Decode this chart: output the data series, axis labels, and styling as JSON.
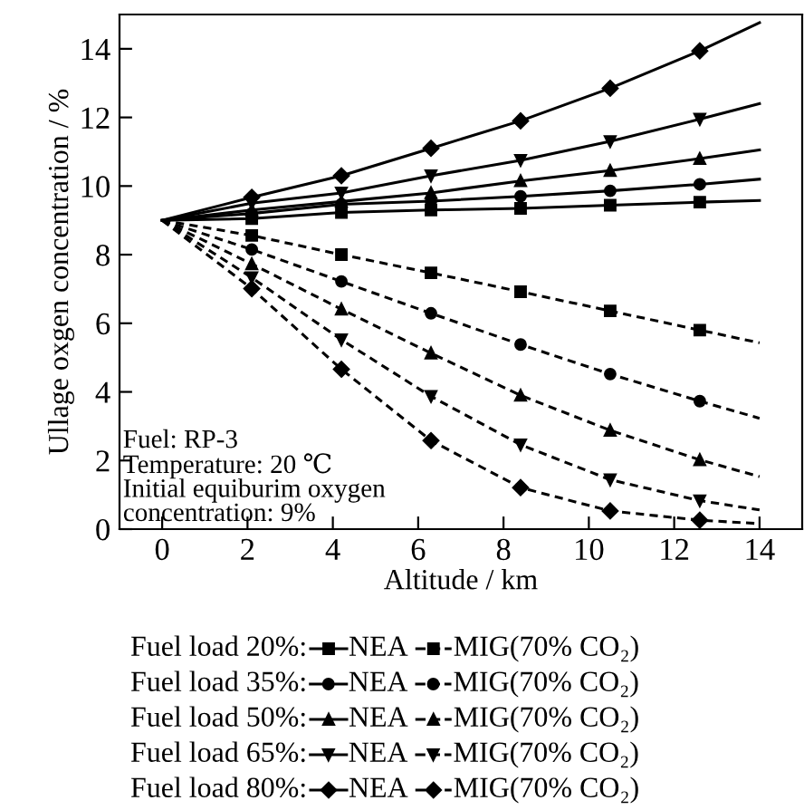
{
  "chart_data": {
    "type": "line",
    "xlabel": "Altitude / km",
    "ylabel": "Ullage oxgen concentration / %",
    "x": [
      0,
      2.1,
      4.2,
      6.3,
      8.4,
      10.5,
      12.6,
      14
    ],
    "xlim": [
      -1,
      15
    ],
    "ylim": [
      0,
      15
    ],
    "xticks": [
      0,
      2,
      4,
      6,
      8,
      10,
      12,
      14
    ],
    "yticks": [
      0,
      2,
      4,
      6,
      8,
      10,
      12,
      14
    ],
    "grid": false,
    "legend": "bottom",
    "series": [
      {
        "name": "NEA",
        "color": "#000000",
        "marker": "square",
        "line_style": "solid",
        "values": [
          9.0,
          9.05,
          9.23,
          9.3,
          9.35,
          9.44,
          9.53,
          9.58
        ]
      },
      {
        "name": "MIG(70% CO₂)",
        "color": "#000000",
        "marker": "square",
        "line_style": "dashed",
        "values": [
          9.0,
          8.56,
          8.0,
          7.47,
          6.92,
          6.36,
          5.8,
          5.43
        ]
      },
      {
        "name": "NEA",
        "color": "#000000",
        "marker": "circle",
        "line_style": "solid",
        "values": [
          9.0,
          9.2,
          9.47,
          9.56,
          9.7,
          9.86,
          10.05,
          10.2
        ]
      },
      {
        "name": "MIG(70% CO₂)",
        "color": "#000000",
        "marker": "circle",
        "line_style": "dashed",
        "values": [
          9.0,
          8.15,
          7.22,
          6.29,
          5.38,
          4.52,
          3.73,
          3.23
        ]
      },
      {
        "name": "NEA",
        "color": "#000000",
        "marker": "triangle",
        "line_style": "solid",
        "values": [
          9.0,
          9.3,
          9.55,
          9.8,
          10.15,
          10.45,
          10.8,
          11.05
        ]
      },
      {
        "name": "MIG(70% CO₂)",
        "color": "#000000",
        "marker": "triangle",
        "line_style": "dashed",
        "values": [
          9.0,
          7.73,
          6.41,
          5.13,
          3.9,
          2.88,
          2.02,
          1.53
        ]
      },
      {
        "name": "NEA",
        "color": "#000000",
        "marker": "triangle_down",
        "line_style": "solid",
        "values": [
          9.0,
          9.5,
          9.8,
          10.3,
          10.75,
          11.3,
          11.95,
          12.4
        ]
      },
      {
        "name": "MIG(70% CO₂)",
        "color": "#000000",
        "marker": "triangle_down",
        "line_style": "dashed",
        "values": [
          9.0,
          7.33,
          5.52,
          3.87,
          2.46,
          1.44,
          0.83,
          0.56
        ]
      },
      {
        "name": "NEA",
        "color": "#000000",
        "marker": "diamond",
        "line_style": "solid",
        "values": [
          9.0,
          9.67,
          10.3,
          11.1,
          11.9,
          12.85,
          13.94,
          14.76
        ]
      },
      {
        "name": "MIG(70% CO₂)",
        "color": "#000000",
        "marker": "diamond",
        "line_style": "dashed",
        "values": [
          9.0,
          7.01,
          4.66,
          2.58,
          1.21,
          0.53,
          0.26,
          0.16
        ]
      }
    ],
    "annotations": [
      "Fuel: RP-3\nTemperature: 20 ℃\nInitial equiburim oxygen\nconcentration: 9%",
      "Fuel load 20%:",
      "Fuel load 35%:",
      "Fuel load 50%:",
      "Fuel load 65%:",
      "Fuel load 80%:"
    ]
  }
}
